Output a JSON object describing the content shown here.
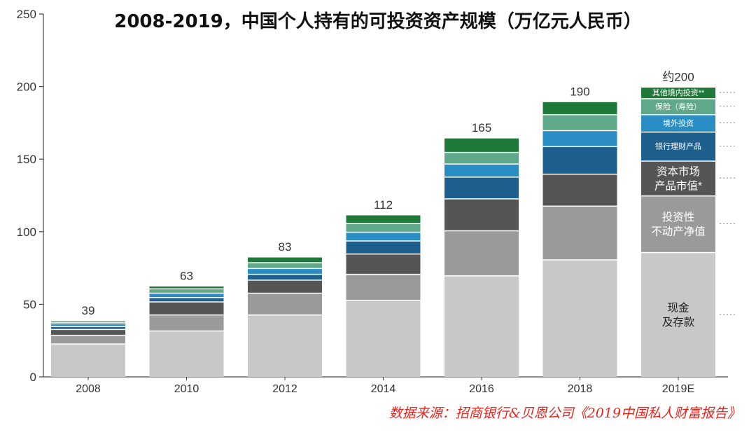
{
  "title": "2008-2019，中国个人持有的可投资资产规模（万亿元人民币）",
  "source": "数据来源：招商银行&贝恩公司《2019中国私人财富报告》",
  "colors": {
    "source_text": "#e8231c",
    "axis": "#444444"
  },
  "chart_data": {
    "type": "bar",
    "stacked": true,
    "title": "2008-2019，中国个人持有的可投资资产规模（万亿元人民币）",
    "xlabel": "",
    "ylabel": "",
    "ylim": [
      0,
      250
    ],
    "yticks": [
      0,
      50,
      100,
      150,
      200,
      250
    ],
    "grid": false,
    "categories": [
      "2008",
      "2010",
      "2012",
      "2014",
      "2016",
      "2018",
      "2019E"
    ],
    "totals": [
      39,
      63,
      83,
      112,
      165,
      190,
      200
    ],
    "total_labels": [
      "39",
      "63",
      "83",
      "112",
      "165",
      "190",
      "约200"
    ],
    "legend_position": "inline-right",
    "series": [
      {
        "name": "现金\n及存款",
        "color": "#c8c8c8",
        "values": [
          23,
          32,
          43,
          53,
          70,
          81,
          86
        ]
      },
      {
        "name": "投资性\n不动产净值",
        "color": "#9a9a9a",
        "values": [
          6,
          11,
          15,
          18,
          31,
          37,
          39
        ]
      },
      {
        "name": "资本市场\n产品市值*",
        "color": "#555555",
        "values": [
          4,
          9,
          9,
          14,
          22,
          22,
          24
        ]
      },
      {
        "name": "银行理财产品",
        "color": "#1e5f8e",
        "values": [
          2,
          3,
          4,
          9,
          15,
          19,
          20
        ]
      },
      {
        "name": "境外投资",
        "color": "#2a8ec4",
        "values": [
          2,
          3,
          4,
          6,
          9,
          11,
          12
        ]
      },
      {
        "name": "保险（寿险）",
        "color": "#5fa88a",
        "values": [
          1,
          3,
          4,
          6,
          8,
          11,
          11
        ]
      },
      {
        "name": "其他境内投资**",
        "color": "#1f7a3a",
        "values": [
          1,
          2,
          4,
          6,
          10,
          9,
          8
        ]
      }
    ]
  }
}
